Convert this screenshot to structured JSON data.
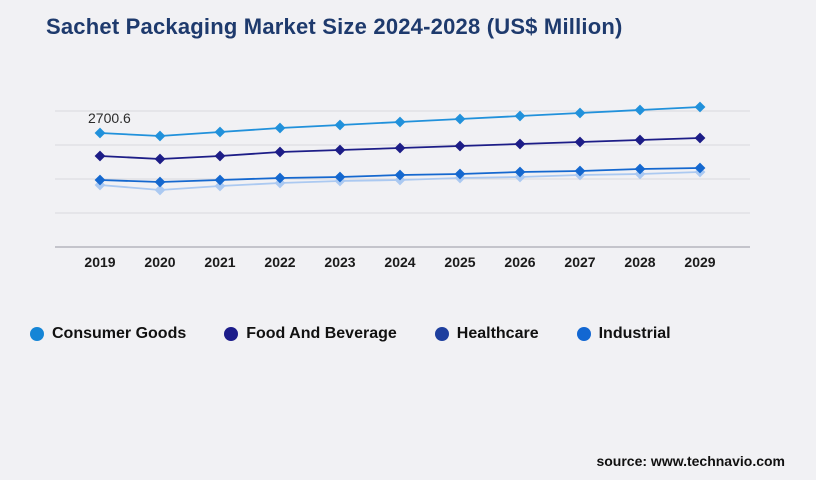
{
  "title": "Sachet Packaging Market Size 2024-2028 (US$ Million)",
  "source_text": "source: www.technavio.com",
  "colors": {
    "background": "#f1f1f4",
    "title": "#1e3a6d",
    "gridline": "#d9d9de",
    "axis_line": "#b5b5bd",
    "axis_label": "#1b1b1b",
    "data_label": "#2b2b2b"
  },
  "chart_data": {
    "type": "line",
    "title": "Sachet Packaging Market Size 2024-2028 (US$ Million)",
    "xlabel": "",
    "ylabel": "US$ Million",
    "x": [
      2019,
      2020,
      2021,
      2022,
      2023,
      2024,
      2025,
      2026,
      2027,
      2028,
      2029
    ],
    "y_axis_labels_visible": false,
    "ylim": [
      0,
      4100
    ],
    "grid": "horizontal",
    "marker": "diamond",
    "legend_position": "bottom",
    "series": [
      {
        "name": "Consumer Goods",
        "line_color": "#2191db",
        "legend_color": "#1585d6",
        "values": [
          2700.6,
          2630,
          2724,
          2819,
          2890,
          2961,
          3032,
          3103,
          3174,
          3246,
          3317
        ]
      },
      {
        "name": "Food And Beverage",
        "line_color": "#1d1d87",
        "legend_color": "#1c1c8a",
        "values": [
          2156,
          2085,
          2156,
          2250,
          2298,
          2345,
          2393,
          2440,
          2488,
          2535,
          2582
        ]
      },
      {
        "name": "Healthcare",
        "line_color": "#1568cf",
        "legend_color": "#1e3f9e",
        "values": [
          1587,
          1540,
          1587,
          1635,
          1658,
          1706,
          1729,
          1777,
          1800,
          1848,
          1871
        ]
      },
      {
        "name": "Industrial",
        "line_color": "#abc9f1",
        "legend_color": "#1267d2",
        "values": [
          1469,
          1350,
          1445,
          1516,
          1564,
          1587,
          1635,
          1658,
          1706,
          1729,
          1777
        ]
      }
    ],
    "annotations": [
      {
        "series": "Consumer Goods",
        "x": 2019,
        "label": "2700.6"
      }
    ]
  }
}
